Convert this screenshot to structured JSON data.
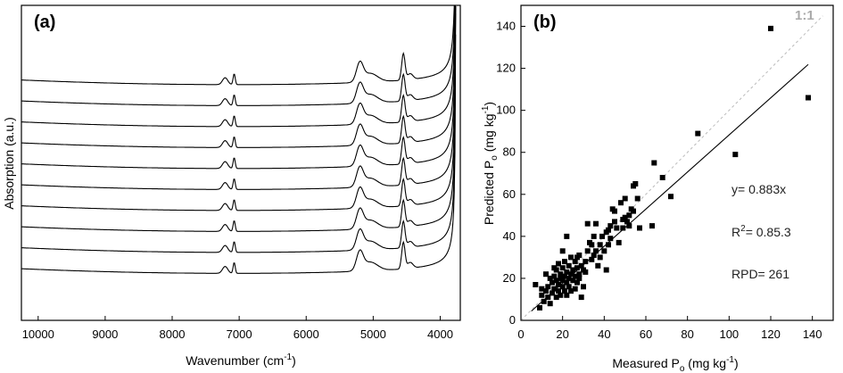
{
  "chart_data": [
    {
      "type": "line",
      "panel_label": "(a)",
      "xlabel": "Wavenumber (cm-1)",
      "xlabel_parts": {
        "main": "Wavenumber (cm",
        "sup": "-1",
        "close": ")"
      },
      "ylabel": "Absorption (a.u.)",
      "x_reversed": true,
      "xlim": [
        10250,
        3700
      ],
      "x_ticks": [
        10000,
        9000,
        8000,
        7000,
        6000,
        5000,
        4000
      ],
      "y_ticks_shown": false,
      "grid": false,
      "series_count": 10,
      "series_offsets": [
        0,
        1,
        2,
        3,
        4,
        5,
        6,
        7,
        8,
        9
      ]
    },
    {
      "type": "scatter",
      "panel_label": "(b)",
      "xlabel": "Measured Po (mg kg-1)",
      "xlabel_parts": {
        "main": "Measured P",
        "sub": "o",
        "unit": " (mg kg",
        "sup": "-1",
        "close": ")"
      },
      "ylabel": "Predicted Po (mg kg-1)",
      "ylabel_parts": {
        "main": "Predicted P",
        "sub": "o",
        "unit": " (mg kg",
        "sup": "-1",
        "close": ")"
      },
      "xlim": [
        0,
        150
      ],
      "ylim": [
        0,
        150
      ],
      "x_ticks": [
        0,
        20,
        40,
        60,
        80,
        100,
        120,
        140
      ],
      "y_ticks": [
        0,
        20,
        40,
        60,
        80,
        100,
        120,
        140
      ],
      "grid": false,
      "fit_line": {
        "slope": 0.883,
        "x_range": [
          5,
          138
        ]
      },
      "one_to_one_label": "1:1",
      "annotations": {
        "equation": "y= 0.883x",
        "r2_prefix": "R",
        "r2_sup": "2",
        "r2_value": "= 0.85.3",
        "rpd": "RPD= 261"
      },
      "points": [
        [
          7,
          17
        ],
        [
          9,
          6
        ],
        [
          10,
          12
        ],
        [
          10,
          15
        ],
        [
          11,
          9
        ],
        [
          12,
          14
        ],
        [
          12,
          22
        ],
        [
          13,
          16
        ],
        [
          13,
          11
        ],
        [
          14,
          20
        ],
        [
          14,
          8
        ],
        [
          15,
          18
        ],
        [
          15,
          13
        ],
        [
          16,
          25
        ],
        [
          16,
          21
        ],
        [
          16,
          15
        ],
        [
          17,
          19
        ],
        [
          17,
          11
        ],
        [
          17,
          24
        ],
        [
          18,
          17
        ],
        [
          18,
          27
        ],
        [
          18,
          14
        ],
        [
          19,
          22
        ],
        [
          19,
          20
        ],
        [
          19,
          12
        ],
        [
          20,
          16
        ],
        [
          20,
          25
        ],
        [
          20,
          33
        ],
        [
          20,
          19
        ],
        [
          21,
          21
        ],
        [
          21,
          28
        ],
        [
          21,
          14
        ],
        [
          22,
          23
        ],
        [
          22,
          18
        ],
        [
          22,
          12
        ],
        [
          22,
          40
        ],
        [
          23,
          26
        ],
        [
          23,
          20
        ],
        [
          23,
          16
        ],
        [
          24,
          22
        ],
        [
          24,
          30
        ],
        [
          24,
          14
        ],
        [
          25,
          19
        ],
        [
          25,
          24
        ],
        [
          26,
          28
        ],
        [
          26,
          21
        ],
        [
          26,
          15
        ],
        [
          27,
          25
        ],
        [
          27,
          30
        ],
        [
          27,
          18
        ],
        [
          28,
          20
        ],
        [
          28,
          22
        ],
        [
          28,
          31
        ],
        [
          29,
          26
        ],
        [
          29,
          11
        ],
        [
          30,
          24
        ],
        [
          30,
          16
        ],
        [
          31,
          28
        ],
        [
          31,
          23
        ],
        [
          32,
          46
        ],
        [
          32,
          33
        ],
        [
          33,
          37
        ],
        [
          34,
          29
        ],
        [
          34,
          36
        ],
        [
          35,
          40
        ],
        [
          35,
          31
        ],
        [
          36,
          46
        ],
        [
          36,
          33
        ],
        [
          37,
          26
        ],
        [
          38,
          36
        ],
        [
          38,
          30
        ],
        [
          39,
          40
        ],
        [
          40,
          33
        ],
        [
          41,
          42
        ],
        [
          41,
          24
        ],
        [
          42,
          36
        ],
        [
          42,
          43
        ],
        [
          43,
          45
        ],
        [
          43,
          39
        ],
        [
          44,
          53
        ],
        [
          45,
          52
        ],
        [
          45,
          47
        ],
        [
          46,
          44
        ],
        [
          47,
          37
        ],
        [
          48,
          56
        ],
        [
          49,
          48
        ],
        [
          49,
          44
        ],
        [
          50,
          58
        ],
        [
          50,
          49
        ],
        [
          51,
          47
        ],
        [
          52,
          50
        ],
        [
          52,
          45
        ],
        [
          53,
          53
        ],
        [
          54,
          52
        ],
        [
          54,
          64
        ],
        [
          55,
          65
        ],
        [
          56,
          58
        ],
        [
          57,
          44
        ],
        [
          63,
          45
        ],
        [
          64,
          75
        ],
        [
          68,
          68
        ],
        [
          72,
          59
        ],
        [
          85,
          89
        ],
        [
          103,
          79
        ],
        [
          120,
          139
        ],
        [
          138,
          106
        ]
      ]
    }
  ]
}
